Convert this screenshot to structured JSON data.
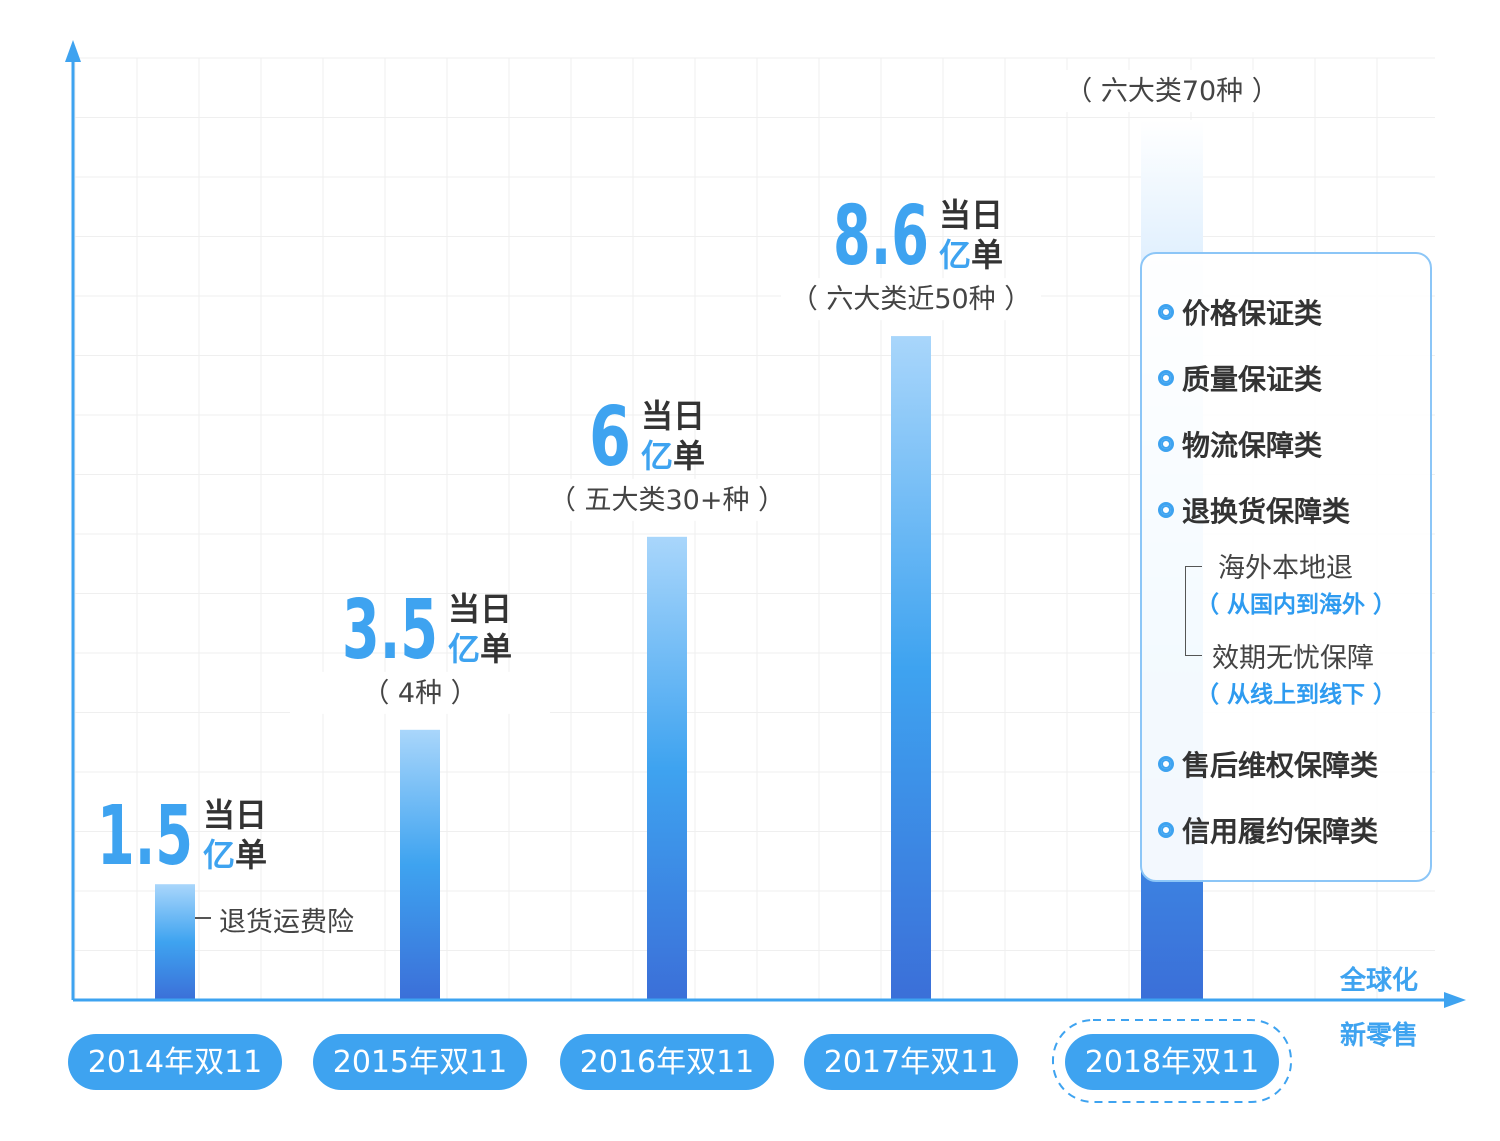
{
  "chart_data": {
    "type": "bar",
    "categories": [
      "2014年双11",
      "2015年双11",
      "2016年双11",
      "2017年双11",
      "2018年双11"
    ],
    "series": [
      {
        "values": [
          1.5,
          3.5,
          6,
          8.6,
          null
        ]
      }
    ],
    "value_unit_line1": "当日",
    "value_unit_line2_prefix": "亿",
    "value_unit_line2_suffix": "单",
    "value_labels": [
      "1.5",
      "3.5",
      "6",
      "8.6",
      ""
    ],
    "category_notes": [
      "",
      "（ 4种 ）",
      "（ 五大类30+种 ）",
      "（ 六大类近50种 ）",
      "（ 六大类70种 ）"
    ],
    "annotation_2014": "退货运费险",
    "axis_right_labels": [
      "全球化",
      "新零售"
    ],
    "grid": true,
    "colors": {
      "bar_top": "#a9d6fb",
      "bar_mid": "#3ea3f0",
      "bar_bottom": "#3b6fd8",
      "axis": "#3ea3f0",
      "pill": "#3ea3f0"
    }
  },
  "panel_2018": {
    "items": [
      "价格保证类",
      "质量保证类",
      "物流保障类",
      "退换货保障类"
    ],
    "sub_items": [
      {
        "label": "海外本地退",
        "note": "（ 从国内到海外 ）"
      },
      {
        "label": "效期无忧保障",
        "note": "（ 从线上到线下 ）"
      }
    ],
    "items_after": [
      "售后维权保障类",
      "信用履约保障类"
    ]
  }
}
